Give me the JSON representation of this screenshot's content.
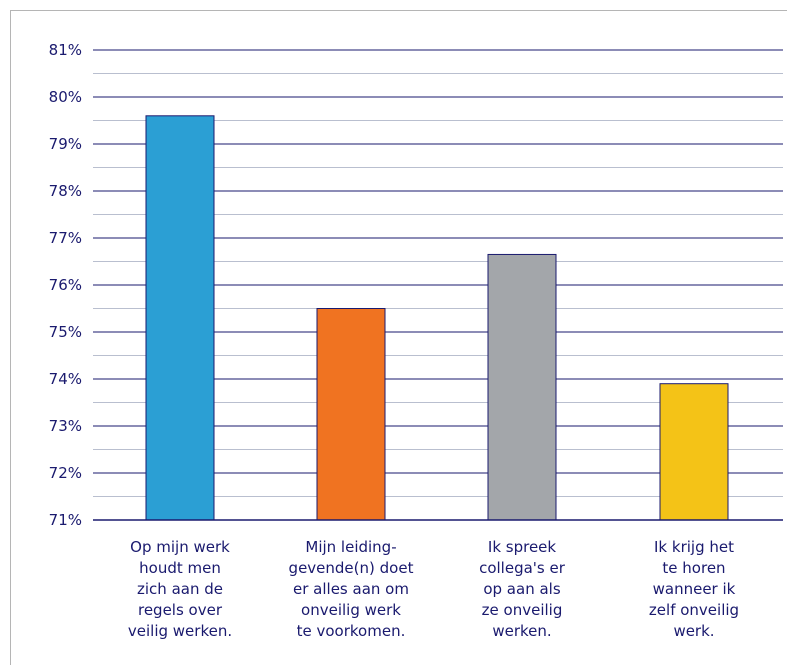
{
  "chart_data": {
    "type": "bar",
    "categories": [
      [
        "Op mijn werk",
        "houdt men",
        "zich aan de",
        "regels over",
        "veilig werken."
      ],
      [
        "Mijn leiding-",
        "gevende(n) doet",
        "er alles aan om",
        "onveilig werk",
        "te voorkomen."
      ],
      [
        "Ik spreek",
        "collega's er",
        "op aan als",
        "ze onveilig",
        "werken."
      ],
      [
        "Ik krijg het",
        "te horen",
        "wanneer ik",
        "zelf onveilig",
        "werk."
      ]
    ],
    "values": [
      79.6,
      75.5,
      76.65,
      73.9
    ],
    "colors": [
      "#2b9fd4",
      "#f07321",
      "#a3a6aa",
      "#f4c317"
    ],
    "ylim": [
      71,
      81
    ],
    "yticks": [
      "71%",
      "72%",
      "73%",
      "74%",
      "75%",
      "76%",
      "77%",
      "78%",
      "79%",
      "80%",
      "81%"
    ],
    "grid": true
  }
}
